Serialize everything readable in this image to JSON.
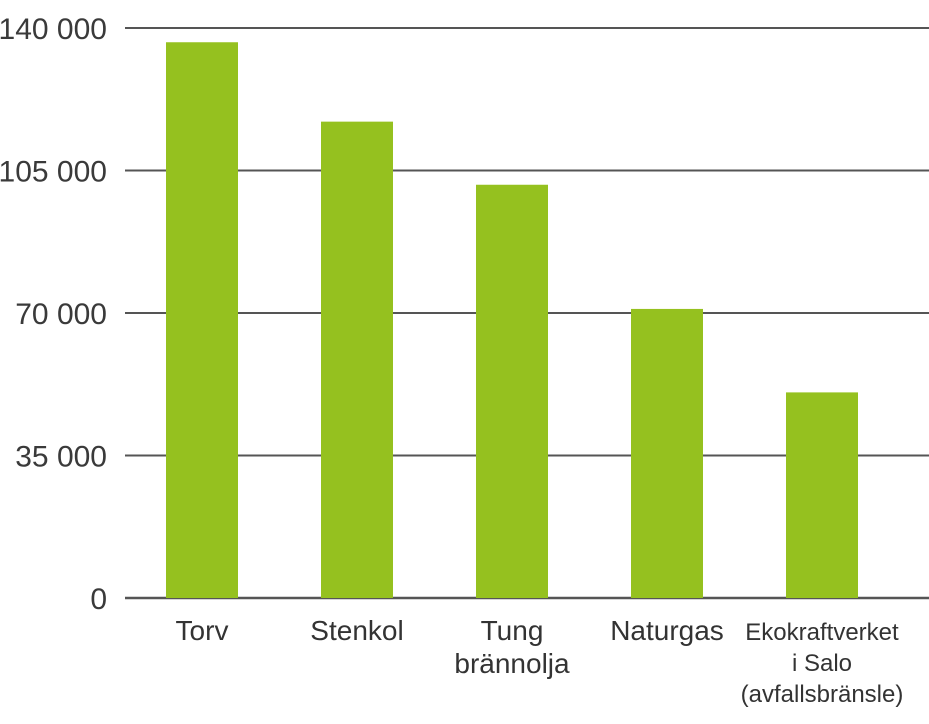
{
  "chart_data": {
    "type": "bar",
    "title": "",
    "xlabel": "",
    "ylabel": "",
    "ylim": [
      0,
      140000
    ],
    "yticks": [
      0,
      35000,
      70000,
      105000,
      140000
    ],
    "ytick_labels": [
      "0",
      "35 000",
      "70 000",
      "105 000",
      "140 000"
    ],
    "grid": true,
    "legend": "none",
    "categories": [
      [
        "Torv"
      ],
      [
        "Stenkol"
      ],
      [
        "Tung",
        "brännolja"
      ],
      [
        "Naturgas"
      ],
      [
        "Ekokraftverket",
        "i Salo",
        "(avfallsbränsle)"
      ]
    ],
    "values": [
      136500,
      117000,
      101500,
      71000,
      50500
    ],
    "bar_color": "#95c11f"
  }
}
